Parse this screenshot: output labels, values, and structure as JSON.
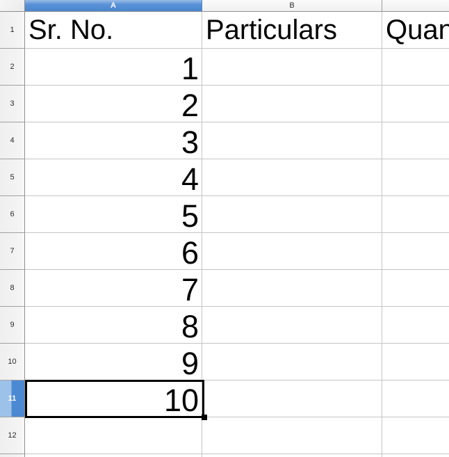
{
  "columns": {
    "a": "A",
    "b": "B",
    "c": ""
  },
  "row_headers": [
    "1",
    "2",
    "3",
    "4",
    "5",
    "6",
    "7",
    "8",
    "9",
    "10",
    "11",
    "12"
  ],
  "cells": {
    "a1": "Sr. No.",
    "b1": "Particulars",
    "c1": "Quantity",
    "a2": "1",
    "a3": "2",
    "a4": "3",
    "a5": "4",
    "a6": "5",
    "a7": "6",
    "a8": "7",
    "a9": "8",
    "a10": "9",
    "a11": "10"
  },
  "selection": {
    "active_column": "A",
    "active_row": "11"
  },
  "colors": {
    "selected_column_header": "#4a86ce",
    "selected_row_header_light": "#9dc2e9",
    "selected_row_header_dark": "#4c89d3",
    "header_gray": "#f2f2f2",
    "gridline": "#c4c4c4",
    "cell_cursor": "#000000"
  }
}
